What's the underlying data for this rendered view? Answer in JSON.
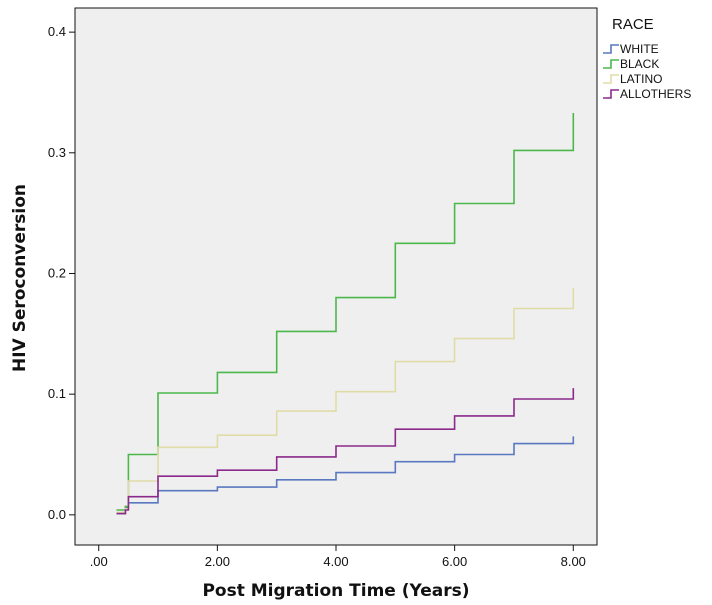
{
  "chart_data": {
    "type": "line",
    "step": true,
    "title": "",
    "xlabel": "Post Migration Time (Years)",
    "ylabel": "HIV Seroconversion",
    "xlim": [
      -0.4,
      8.4
    ],
    "ylim": [
      -0.025,
      0.42
    ],
    "x_ticks": [
      0,
      2,
      4,
      6,
      8
    ],
    "x_tick_labels": [
      ".00",
      "2.00",
      "4.00",
      "6.00",
      "8.00"
    ],
    "y_ticks": [
      0.0,
      0.1,
      0.2,
      0.3,
      0.4
    ],
    "y_tick_labels": [
      "0.0",
      "0.1",
      "0.2",
      "0.3",
      "0.4"
    ],
    "grid": false,
    "plot_background": "#efefef",
    "legend_title": "RACE",
    "legend_position": "right",
    "series": [
      {
        "name": "WHITE",
        "color": "#5a78c0",
        "points": [
          [
            0.3,
            0.001
          ],
          [
            0.45,
            0.006
          ],
          [
            0.5,
            0.01
          ],
          [
            1.0,
            0.02
          ],
          [
            2.0,
            0.023
          ],
          [
            3.0,
            0.029
          ],
          [
            4.0,
            0.035
          ],
          [
            5.0,
            0.044
          ],
          [
            6.0,
            0.05
          ],
          [
            7.0,
            0.059
          ],
          [
            8.0,
            0.059
          ],
          [
            8.0,
            0.065
          ]
        ]
      },
      {
        "name": "BLACK",
        "color": "#4cb84c",
        "points": [
          [
            0.3,
            0.004
          ],
          [
            0.45,
            0.007
          ],
          [
            0.5,
            0.05
          ],
          [
            1.0,
            0.101
          ],
          [
            2.0,
            0.118
          ],
          [
            3.0,
            0.152
          ],
          [
            4.0,
            0.18
          ],
          [
            5.0,
            0.225
          ],
          [
            6.0,
            0.258
          ],
          [
            7.0,
            0.302
          ],
          [
            8.0,
            0.302
          ],
          [
            8.0,
            0.333
          ]
        ]
      },
      {
        "name": "LATINO",
        "color": "#e0dca8",
        "points": [
          [
            0.3,
            0.002
          ],
          [
            0.45,
            0.005
          ],
          [
            0.5,
            0.028
          ],
          [
            1.0,
            0.056
          ],
          [
            2.0,
            0.066
          ],
          [
            3.0,
            0.086
          ],
          [
            4.0,
            0.102
          ],
          [
            5.0,
            0.127
          ],
          [
            6.0,
            0.146
          ],
          [
            7.0,
            0.171
          ],
          [
            8.0,
            0.171
          ],
          [
            8.0,
            0.188
          ]
        ]
      },
      {
        "name": "ALLOTHERS",
        "color": "#8b2a8b",
        "points": [
          [
            0.3,
            0.001
          ],
          [
            0.45,
            0.004
          ],
          [
            0.5,
            0.015
          ],
          [
            1.0,
            0.032
          ],
          [
            2.0,
            0.037
          ],
          [
            3.0,
            0.048
          ],
          [
            4.0,
            0.057
          ],
          [
            5.0,
            0.071
          ],
          [
            6.0,
            0.082
          ],
          [
            7.0,
            0.096
          ],
          [
            8.0,
            0.096
          ],
          [
            8.0,
            0.105
          ]
        ]
      }
    ]
  }
}
